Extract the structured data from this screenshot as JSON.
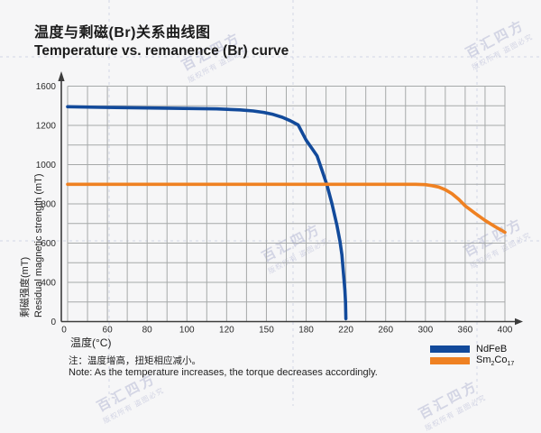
{
  "header": {
    "title_zh": "温度与剩磁(Br)关系曲线图",
    "title_en": "Temperature vs. remanence (Br) curve"
  },
  "axes": {
    "x_title": "温度(°C)",
    "y_title_zh": "剩磁强度(mT)",
    "y_title_en": "Residual magnetic strength (mT)"
  },
  "notes": {
    "zh": "注：温度增高，扭矩相应减小。",
    "en": "Note: As the temperature increases, the torque decreases accordingly."
  },
  "legend": {
    "items": [
      {
        "label": "NdFeB",
        "color": "#124a9b"
      },
      {
        "label": "Sm2Co17",
        "color": "#ef8122",
        "parts": [
          "Sm",
          "2",
          "Co",
          "17"
        ]
      }
    ]
  },
  "watermark": {
    "brand": "百汇四方",
    "notice": "版权所有 盗图必究"
  },
  "colors": {
    "background": "#f6f6f7",
    "grid": "#a6a9a9",
    "axis": "#3c3c3c",
    "ndfeb": "#124a9b",
    "sm2co17": "#ef8122",
    "tick_text": "#2a2a2a"
  },
  "chart_data": {
    "type": "line",
    "title": "温度与剩磁(Br)关系曲线图 / Temperature vs. remanence (Br) curve",
    "xlabel": "温度(°C)",
    "ylabel": "剩磁强度(mT) / Residual magnetic strength (mT)",
    "x_tick_labels": [
      0,
      60,
      80,
      100,
      120,
      150,
      180,
      220,
      260,
      300,
      360,
      400
    ],
    "y_tick_labels": [
      1600,
      1200,
      1000,
      800,
      600,
      400,
      0
    ],
    "grid": true,
    "legend_position": "bottom-right",
    "series": [
      {
        "name": "NdFeB",
        "color": "#124a9b",
        "points": [
          [
            0,
            1390
          ],
          [
            50,
            1384
          ],
          [
            90,
            1376
          ],
          [
            115,
            1368
          ],
          [
            130,
            1358
          ],
          [
            140,
            1347
          ],
          [
            148,
            1332
          ],
          [
            155,
            1312
          ],
          [
            162,
            1283
          ],
          [
            168,
            1248
          ],
          [
            174,
            1205
          ],
          [
            180,
            1125
          ],
          [
            186,
            1081
          ],
          [
            191,
            1044
          ],
          [
            196,
            970
          ],
          [
            201,
            895
          ],
          [
            206,
            800
          ],
          [
            211,
            690
          ],
          [
            214,
            610
          ],
          [
            216,
            540
          ],
          [
            218,
            420
          ],
          [
            219,
            320
          ],
          [
            219.6,
            200
          ],
          [
            220,
            30
          ]
        ]
      },
      {
        "name": "Sm2Co17",
        "color": "#ef8122",
        "points": [
          [
            0,
            900
          ],
          [
            60,
            900
          ],
          [
            120,
            900
          ],
          [
            180,
            900
          ],
          [
            240,
            900
          ],
          [
            290,
            900
          ],
          [
            300,
            898
          ],
          [
            310,
            893
          ],
          [
            320,
            886
          ],
          [
            330,
            872
          ],
          [
            340,
            852
          ],
          [
            350,
            824
          ],
          [
            360,
            790
          ],
          [
            370,
            752
          ],
          [
            380,
            716
          ],
          [
            390,
            684
          ],
          [
            400,
            655
          ]
        ]
      }
    ]
  }
}
